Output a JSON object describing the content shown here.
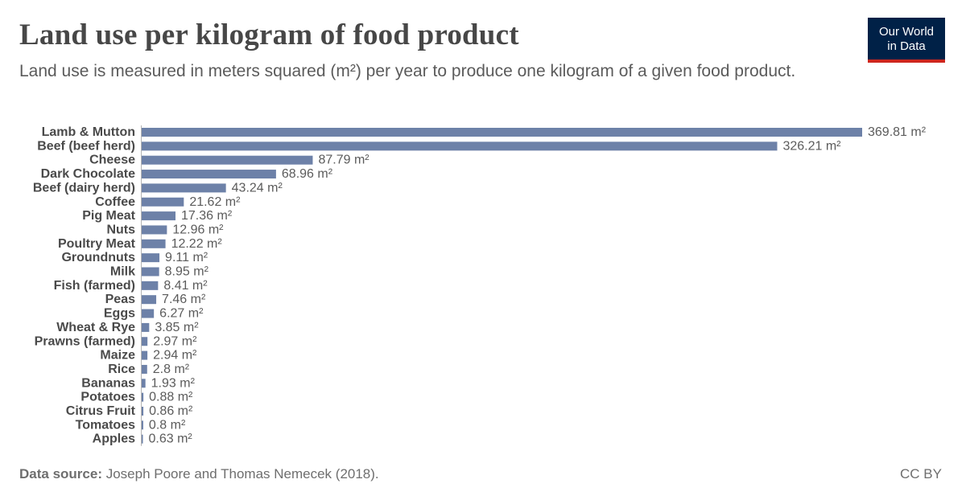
{
  "header": {
    "title": "Land use per kilogram of food product",
    "subtitle": "Land use is measured in meters squared (m²) per year to produce one kilogram of a given food product."
  },
  "logo": {
    "line1": "Our World",
    "line2": "in Data"
  },
  "footer": {
    "source_label": "Data source:",
    "source_text": "Joseph Poore and Thomas Nemecek (2018).",
    "license": "CC BY"
  },
  "colors": {
    "bar": "#6d81a8",
    "label": "#4a4a4a",
    "value": "#5b5b5b",
    "axis": "#b3b3b3"
  },
  "chart_data": {
    "type": "bar",
    "orientation": "horizontal",
    "unit": "m²",
    "xlim": [
      0,
      369.81
    ],
    "categories": [
      "Lamb & Mutton",
      "Beef (beef herd)",
      "Cheese",
      "Dark Chocolate",
      "Beef (dairy herd)",
      "Coffee",
      "Pig Meat",
      "Nuts",
      "Poultry Meat",
      "Groundnuts",
      "Milk",
      "Fish (farmed)",
      "Peas",
      "Eggs",
      "Wheat & Rye",
      "Prawns (farmed)",
      "Maize",
      "Rice",
      "Bananas",
      "Potatoes",
      "Citrus Fruit",
      "Tomatoes",
      "Apples"
    ],
    "values": [
      369.81,
      326.21,
      87.79,
      68.96,
      43.24,
      21.62,
      17.36,
      12.96,
      12.22,
      9.11,
      8.95,
      8.41,
      7.46,
      6.27,
      3.85,
      2.97,
      2.94,
      2.8,
      1.93,
      0.88,
      0.86,
      0.8,
      0.63
    ],
    "value_labels": [
      "369.81 m²",
      "326.21 m²",
      "87.79 m²",
      "68.96 m²",
      "43.24 m²",
      "21.62 m²",
      "17.36 m²",
      "12.96 m²",
      "12.22 m²",
      "9.11 m²",
      "8.95 m²",
      "8.41 m²",
      "7.46 m²",
      "6.27 m²",
      "3.85 m²",
      "2.97 m²",
      "2.94 m²",
      "2.8 m²",
      "1.93 m²",
      "0.88 m²",
      "0.86 m²",
      "0.8 m²",
      "0.63 m²"
    ]
  }
}
